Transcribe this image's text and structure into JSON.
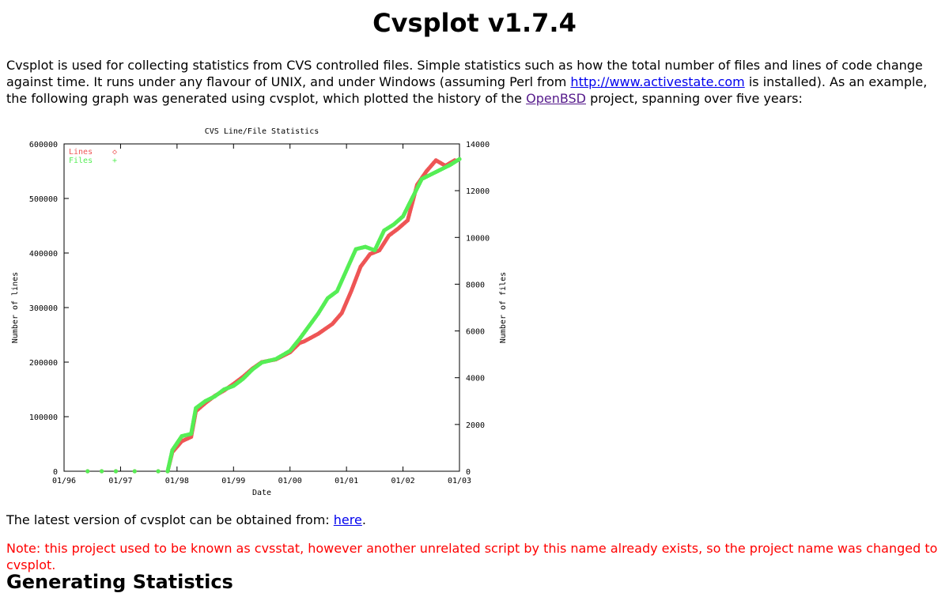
{
  "title": "Cvsplot v1.7.4",
  "intro": {
    "part1": "Cvsplot is used for collecting statistics from CVS controlled files. Simple statistics such as how the total number of files and lines of code change against time. It runs under any flavour of UNIX, and under Windows (assuming Perl from ",
    "link1": "http://www.activestate.com",
    "part2": " is installed). As an example, the following graph was generated using cvsplot, which plotted the history of the ",
    "link2": "OpenBSD",
    "part3": " project, spanning over five years:"
  },
  "latest": {
    "text": "The latest version of cvsplot can be obtained from: ",
    "link": "here",
    "after": "."
  },
  "note": "Note: this project used to be known as cvsstat, however another unrelated script by this name already exists, so the project name was changed to cvsplot.",
  "section_heading": "Generating Statistics",
  "colors": {
    "lines": "#ee5555",
    "files": "#55ee55",
    "note": "#ff0000",
    "link": "#0000ee",
    "visited": "#551a8b"
  },
  "chart_data": {
    "type": "scatter",
    "title": "CVS Line/File Statistics",
    "xlabel": "Date",
    "ylabel": "Number of lines",
    "y2label": "Number of files",
    "x_ticks": [
      "01/96",
      "01/97",
      "01/98",
      "01/99",
      "01/00",
      "01/01",
      "01/02",
      "01/03"
    ],
    "y_ticks": [
      "0",
      "100000",
      "200000",
      "300000",
      "400000",
      "500000",
      "600000"
    ],
    "y2_ticks": [
      "0",
      "2000",
      "4000",
      "6000",
      "8000",
      "10000",
      "12000",
      "14000"
    ],
    "xlim": [
      "1996-01",
      "2003-01"
    ],
    "ylim": [
      0,
      600000
    ],
    "y2lim": [
      0,
      14000
    ],
    "legend_position": "top-left",
    "series": [
      {
        "name": "Lines",
        "marker": "◇",
        "axis": "left",
        "points": [
          [
            "1996-06",
            0
          ],
          [
            "1996-09",
            0
          ],
          [
            "1996-12",
            0
          ],
          [
            "1997-04",
            0
          ],
          [
            "1997-09",
            0
          ],
          [
            "1997-11",
            0
          ],
          [
            "1997-12",
            35000
          ],
          [
            "1998-02",
            55000
          ],
          [
            "1998-04",
            63000
          ],
          [
            "1998-05",
            110000
          ],
          [
            "1998-07",
            125000
          ],
          [
            "1998-09",
            138000
          ],
          [
            "1998-11",
            148000
          ],
          [
            "1999-01",
            160000
          ],
          [
            "1999-03",
            173000
          ],
          [
            "1999-05",
            188000
          ],
          [
            "1999-07",
            200000
          ],
          [
            "1999-10",
            205000
          ],
          [
            "2000-01",
            218000
          ],
          [
            "2000-03",
            235000
          ],
          [
            "2000-04",
            238000
          ],
          [
            "2000-07",
            252000
          ],
          [
            "2000-10",
            270000
          ],
          [
            "2000-12",
            290000
          ],
          [
            "2001-02",
            330000
          ],
          [
            "2001-04",
            375000
          ],
          [
            "2001-06",
            398000
          ],
          [
            "2001-08",
            405000
          ],
          [
            "2001-10",
            432000
          ],
          [
            "2001-12",
            445000
          ],
          [
            "2002-02",
            460000
          ],
          [
            "2002-04",
            525000
          ],
          [
            "2002-06",
            550000
          ],
          [
            "2002-08",
            570000
          ],
          [
            "2002-10",
            560000
          ],
          [
            "2002-12",
            570000
          ]
        ]
      },
      {
        "name": "Files",
        "marker": "+",
        "axis": "right",
        "points": [
          [
            "1996-06",
            0
          ],
          [
            "1996-09",
            0
          ],
          [
            "1996-12",
            0
          ],
          [
            "1997-04",
            0
          ],
          [
            "1997-09",
            0
          ],
          [
            "1997-11",
            0
          ],
          [
            "1997-12",
            900
          ],
          [
            "1998-02",
            1500
          ],
          [
            "1998-04",
            1600
          ],
          [
            "1998-05",
            2700
          ],
          [
            "1998-07",
            3000
          ],
          [
            "1998-09",
            3200
          ],
          [
            "1998-11",
            3500
          ],
          [
            "1999-01",
            3650
          ],
          [
            "1999-03",
            3950
          ],
          [
            "1999-05",
            4350
          ],
          [
            "1999-07",
            4650
          ],
          [
            "1999-10",
            4800
          ],
          [
            "2000-01",
            5150
          ],
          [
            "2000-03",
            5650
          ],
          [
            "2000-05",
            6200
          ],
          [
            "2000-07",
            6750
          ],
          [
            "2000-09",
            7400
          ],
          [
            "2000-11",
            7700
          ],
          [
            "2001-01",
            8600
          ],
          [
            "2001-03",
            9500
          ],
          [
            "2001-05",
            9600
          ],
          [
            "2001-07",
            9450
          ],
          [
            "2001-09",
            10300
          ],
          [
            "2001-11",
            10550
          ],
          [
            "2002-01",
            10900
          ],
          [
            "2002-03",
            11700
          ],
          [
            "2002-05",
            12500
          ],
          [
            "2002-08",
            12800
          ],
          [
            "2002-11",
            13100
          ],
          [
            "2003-01",
            13350
          ]
        ]
      }
    ]
  }
}
